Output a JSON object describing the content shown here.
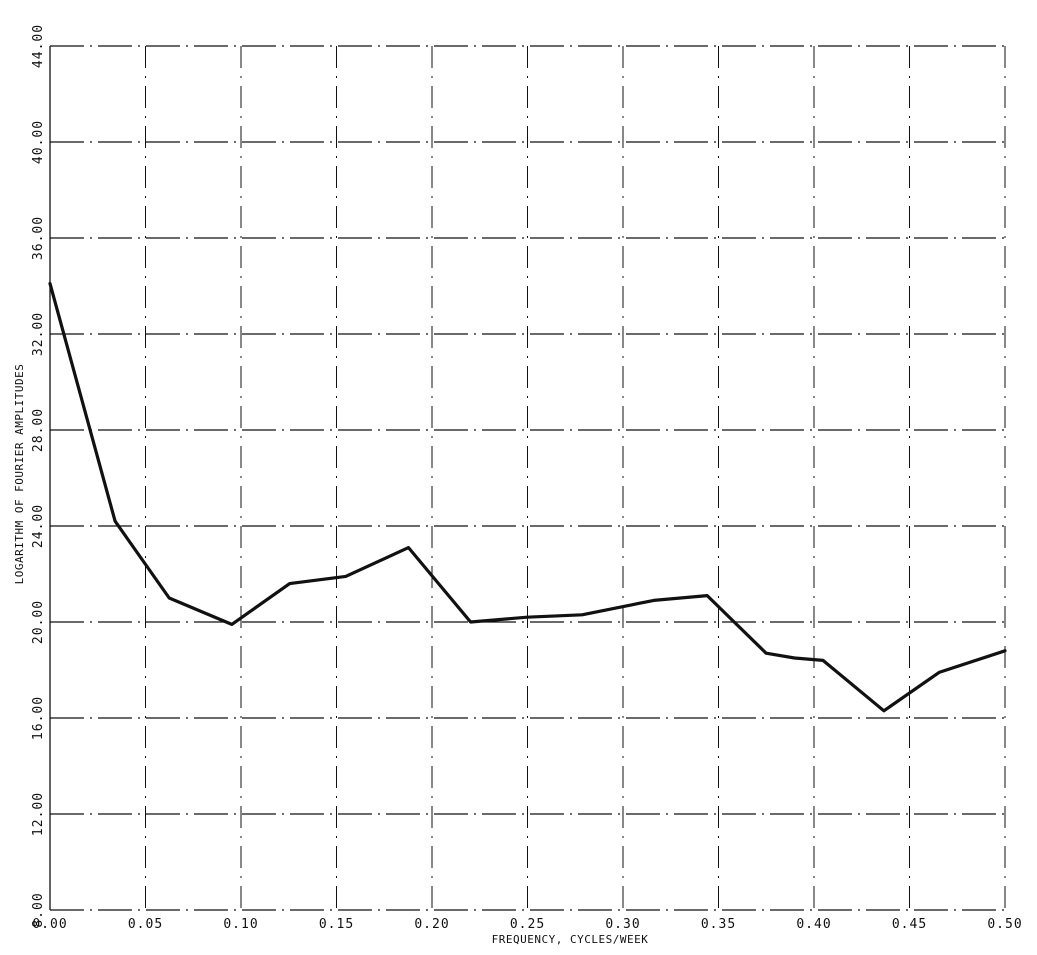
{
  "chart_data": {
    "type": "line",
    "title": "",
    "xlabel": "FREQUENCY, CYCLES/WEEK",
    "ylabel": "LOGARITHM OF FOURIER AMPLITUDES",
    "xlim": [
      0.0,
      0.5
    ],
    "ylim": [
      8.0,
      44.0
    ],
    "grid": true,
    "x_ticks": [
      0.0,
      0.05,
      0.1,
      0.15,
      0.2,
      0.25,
      0.3,
      0.35,
      0.4,
      0.45,
      0.5
    ],
    "x_tick_labels": [
      "0.00",
      "0.05",
      "0.10",
      "0.15",
      "0.20",
      "0.25",
      "0.30",
      "0.35",
      "0.40",
      "0.45",
      "0.50"
    ],
    "y_ticks": [
      8,
      12,
      16,
      20,
      24,
      28,
      32,
      36,
      40,
      44
    ],
    "y_tick_labels": [
      "8.00",
      "12.00",
      "16.00",
      "20.00",
      "24.00",
      "28.00",
      "32.00",
      "36.00",
      "40.00",
      "44.00"
    ],
    "series": [
      {
        "x": [
          0.0,
          0.0341,
          0.0624,
          0.0952,
          0.1255,
          0.1548,
          0.1877,
          0.2202,
          0.2498,
          0.2786,
          0.3161,
          0.3441,
          0.3749,
          0.3898,
          0.4047,
          0.4366,
          0.4655,
          0.5
        ],
        "y": [
          34.1,
          24.2,
          21.0,
          19.9,
          21.6,
          21.9,
          23.1,
          20.0,
          20.2,
          20.3,
          20.9,
          21.1,
          18.7,
          18.5,
          18.4,
          16.3,
          17.9,
          18.8
        ]
      }
    ],
    "colors": {
      "line": "#111111",
      "grid": "#111111",
      "axis": "#111111"
    }
  }
}
